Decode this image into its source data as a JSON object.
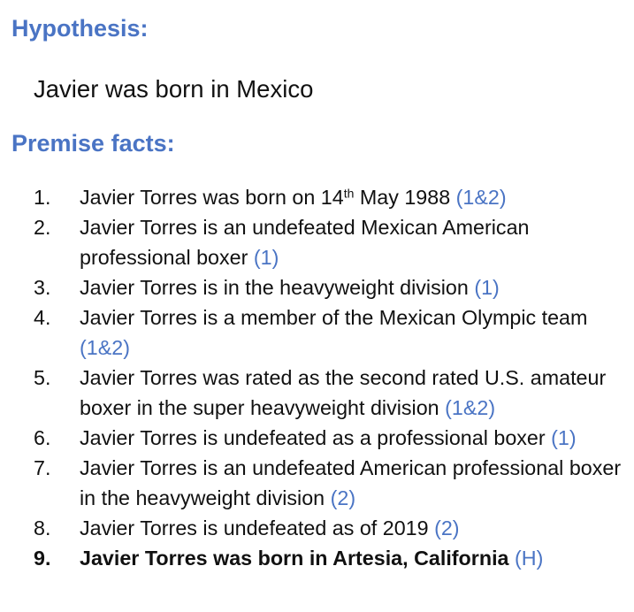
{
  "hypothesis": {
    "heading": "Hypothesis:",
    "text": "Javier was born in Mexico"
  },
  "premises": {
    "heading": "Premise facts:",
    "facts": [
      {
        "num": "1.",
        "text": "Javier Torres was born on 14",
        "sup": "th",
        "after_sup": " May 1988",
        "source": "(1&2)"
      },
      {
        "num": "2.",
        "text": "Javier Torres is an undefeated Mexican American professional boxer",
        "source": "(1)"
      },
      {
        "num": "3.",
        "text": "Javier Torres is in the heavyweight division",
        "source": "(1)"
      },
      {
        "num": "4.",
        "text": "Javier Torres is a member of the Mexican Olympic team",
        "source": "(1&2)"
      },
      {
        "num": "5.",
        "text": "Javier Torres was rated as the second rated U.S. amateur boxer in the super heavyweight division",
        "source": "(1&2)"
      },
      {
        "num": "6.",
        "text": "Javier Torres is undefeated as a professional boxer",
        "source": "(1)"
      },
      {
        "num": "7.",
        "text": "Javier Torres is an undefeated American professional boxer in the heavyweight division",
        "source": "(2)"
      },
      {
        "num": "8.",
        "text": "Javier Torres is undefeated as of 2019",
        "source": "(2)"
      },
      {
        "num": "9.",
        "text": "Javier Torres was born in Artesia, California",
        "source": "(H)",
        "bold": true
      }
    ]
  },
  "colors": {
    "accent": "#4a74c4",
    "text": "#111111"
  }
}
